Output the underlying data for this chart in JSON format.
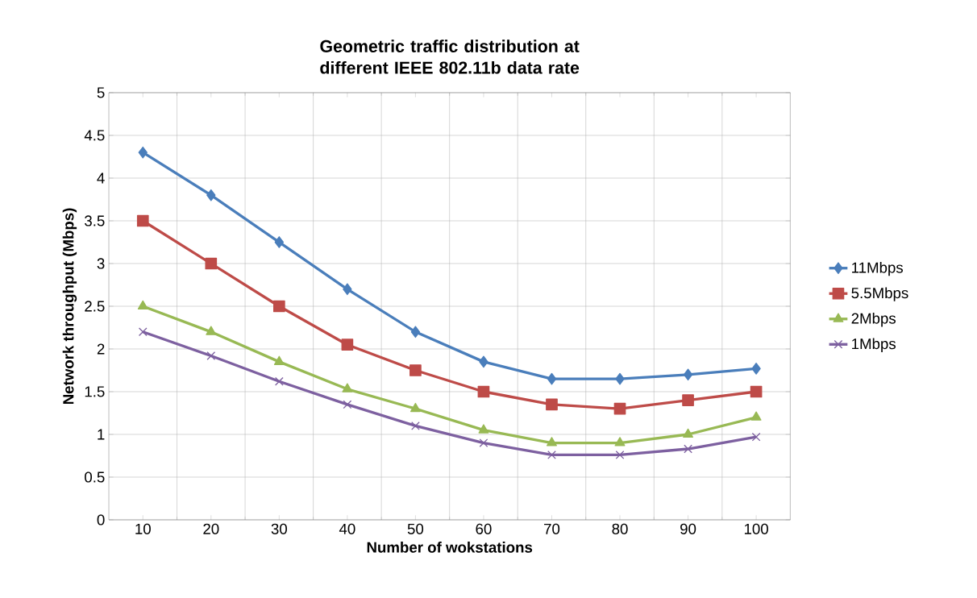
{
  "chart_data": {
    "type": "line",
    "title": "Geometric traffic distribution at different IEEE 802.11b data rate",
    "xlabel": "Number of wokstations",
    "ylabel": "Network throughput (Mbps)",
    "categories": [
      "10",
      "20",
      "30",
      "40",
      "50",
      "60",
      "70",
      "80",
      "90",
      "100"
    ],
    "series": [
      {
        "name": "11Mbps",
        "color": "#4a7ebb",
        "marker": "diamond",
        "values": [
          4.3,
          3.8,
          3.25,
          2.7,
          2.2,
          1.85,
          1.65,
          1.65,
          1.7,
          1.77
        ]
      },
      {
        "name": "5.5Mbps",
        "color": "#be4b48",
        "marker": "square",
        "values": [
          3.5,
          3.0,
          2.5,
          2.05,
          1.75,
          1.5,
          1.35,
          1.3,
          1.4,
          1.5
        ]
      },
      {
        "name": "2Mbps",
        "color": "#98b954",
        "marker": "triangle",
        "values": [
          2.5,
          2.2,
          1.85,
          1.53,
          1.3,
          1.05,
          0.9,
          0.9,
          1.0,
          1.2
        ]
      },
      {
        "name": "1Mbps",
        "color": "#7d60a0",
        "marker": "cross",
        "values": [
          2.2,
          1.92,
          1.62,
          1.35,
          1.1,
          0.9,
          0.76,
          0.76,
          0.83,
          0.97
        ]
      }
    ],
    "ylim": [
      0,
      5
    ],
    "yticks": [
      0,
      0.5,
      1,
      1.5,
      2,
      2.5,
      3,
      3.5,
      4,
      4.5,
      5
    ],
    "grid": true,
    "legend": "right",
    "line_style": "solid"
  }
}
